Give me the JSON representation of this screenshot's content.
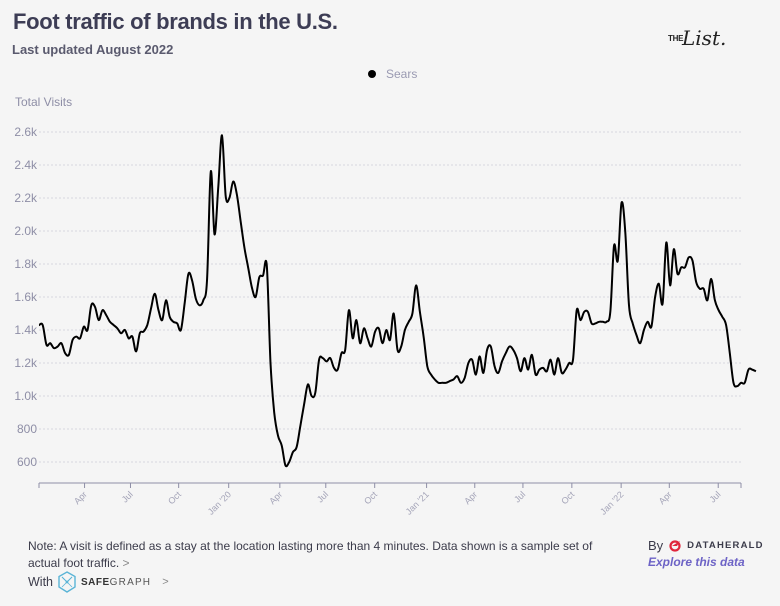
{
  "header": {
    "title": "Foot traffic of brands in the U.S.",
    "subtitle": "Last updated August 2022",
    "logo_small": "THE",
    "logo_script": "List."
  },
  "footer": {
    "note": "Note: A visit is defined as a stay at the location lasting more than 4 minutes. Data shown is a sample set of actual foot traffic.",
    "note_chevron": ">",
    "with_label": "With",
    "safegraph_bold": "SAFE",
    "safegraph_rest": "GRAPH",
    "safegraph_chevron": ">",
    "by_label": "By",
    "dataherald_label": "DATAHERALD",
    "explore_link": "Explore this data"
  },
  "colors": {
    "line": "#000000",
    "grid": "#d6d6de",
    "axis": "#8e8ea6",
    "explore_link": "#6d63c6",
    "dataherald_logo": "#e0263c",
    "safegraph_logo": "#5ab4d6"
  },
  "chart_data": {
    "type": "line",
    "title": "Foot traffic of brands in the U.S.",
    "subtitle": "Last updated August 2022",
    "xlabel": "",
    "ylabel": "Total Visits",
    "legend": {
      "position": "top-center",
      "entries": [
        "Sears"
      ]
    },
    "grid": true,
    "ylim": [
      480,
      2650
    ],
    "yticks": [
      600,
      800,
      1000,
      1200,
      1400,
      1600,
      1800,
      2000,
      2200,
      2400,
      2600
    ],
    "ytick_labels": [
      "600",
      "800",
      "1.0k",
      "1.2k",
      "1.4k",
      "1.6k",
      "1.8k",
      "2.0k",
      "2.2k",
      "2.4k",
      "2.6k"
    ],
    "x_unit": "weeks since start (early Jan 2019)",
    "xlim": [
      0,
      188
    ],
    "xticks": [
      12.2,
      24.5,
      37.4,
      50.8,
      64.5,
      76.8,
      89.9,
      103.8,
      116.7,
      129.6,
      142.7,
      155.9,
      168.8,
      181.9
    ],
    "xtick_labels": [
      "Apr",
      "Jul",
      "Oct",
      "Jan '20",
      "Apr",
      "Jul",
      "Oct",
      "Jan '21",
      "Apr",
      "Jul",
      "Oct",
      "Jan '22",
      "Apr",
      "Jul"
    ],
    "series": [
      {
        "name": "Sears",
        "x_step_weeks": 1,
        "values": [
          1430,
          1430,
          1310,
          1320,
          1290,
          1300,
          1320,
          1260,
          1250,
          1340,
          1360,
          1350,
          1420,
          1400,
          1550,
          1540,
          1460,
          1520,
          1490,
          1450,
          1430,
          1410,
          1380,
          1400,
          1350,
          1360,
          1270,
          1380,
          1390,
          1430,
          1530,
          1620,
          1520,
          1460,
          1580,
          1480,
          1450,
          1440,
          1400,
          1560,
          1740,
          1700,
          1590,
          1550,
          1580,
          1700,
          2360,
          1980,
          2260,
          2580,
          2210,
          2200,
          2300,
          2220,
          2060,
          1900,
          1780,
          1660,
          1600,
          1720,
          1730,
          1790,
          1200,
          900,
          760,
          700,
          580,
          600,
          660,
          690,
          820,
          950,
          1070,
          1000,
          1020,
          1220,
          1230,
          1210,
          1230,
          1170,
          1160,
          1260,
          1280,
          1520,
          1350,
          1460,
          1320,
          1410,
          1350,
          1300,
          1390,
          1410,
          1320,
          1400,
          1340,
          1500,
          1280,
          1300,
          1400,
          1450,
          1500,
          1670,
          1510,
          1360,
          1180,
          1130,
          1100,
          1080,
          1080,
          1080,
          1090,
          1100,
          1120,
          1080,
          1110,
          1200,
          1220,
          1130,
          1240,
          1140,
          1280,
          1300,
          1180,
          1140,
          1210,
          1260,
          1300,
          1280,
          1230,
          1150,
          1230,
          1160,
          1250,
          1130,
          1160,
          1170,
          1150,
          1220,
          1130,
          1230,
          1140,
          1160,
          1200,
          1220,
          1520,
          1460,
          1510,
          1510,
          1440,
          1440,
          1450,
          1450,
          1450,
          1510,
          1910,
          1820,
          2170,
          2000,
          1550,
          1440,
          1370,
          1320,
          1400,
          1450,
          1420,
          1600,
          1680,
          1560,
          1930,
          1670,
          1890,
          1740,
          1780,
          1780,
          1840,
          1820,
          1690,
          1650,
          1650,
          1580,
          1710,
          1580,
          1520,
          1480,
          1430,
          1260,
          1080,
          1060,
          1080,
          1080,
          1160,
          1160,
          1150
        ]
      }
    ]
  }
}
